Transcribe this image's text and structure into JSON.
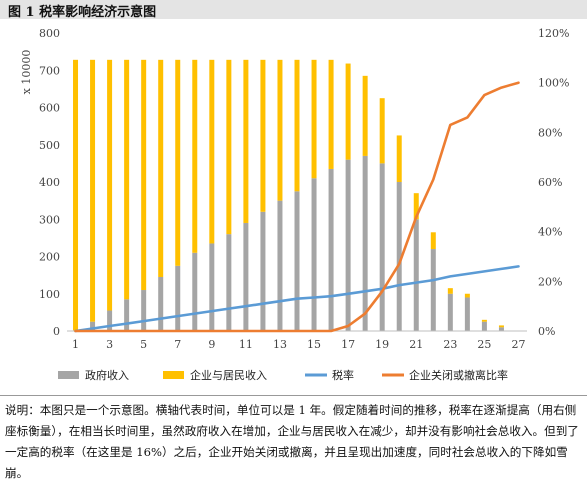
{
  "figure": {
    "title": "图 1  税率影响经济示意图"
  },
  "caption": "说明：本图只是一个示意图。横轴代表时间，单位可以是 1 年。假定随着时间的推移，税率在逐渐提高（用右侧座标衡量），在相当长时间里，虽然政府收入在增加，企业与居民收入在减少，却并没有影响社会总收入。但到了一定高的税率（在这里是 16%）之后，企业开始关闭或撤离，并且呈现出加速度，同时社会总收入的下降如雪崩。",
  "chart_data": {
    "type": "bar",
    "ylabel_left": "x 10000",
    "ylim_left": [
      0,
      800
    ],
    "yticks_left": [
      "0",
      "100",
      "200",
      "300",
      "400",
      "500",
      "600",
      "700",
      "800"
    ],
    "ylim_right": [
      0,
      120
    ],
    "yticks_right": [
      "0%",
      "20%",
      "40%",
      "60%",
      "80%",
      "100%",
      "120%"
    ],
    "x": [
      1,
      2,
      3,
      4,
      5,
      6,
      7,
      8,
      9,
      10,
      11,
      12,
      13,
      14,
      15,
      16,
      17,
      18,
      19,
      20,
      21,
      22,
      23,
      24,
      25,
      26,
      27
    ],
    "xtick_labels": [
      "1",
      "",
      "3",
      "",
      "5",
      "",
      "7",
      "",
      "9",
      "",
      "11",
      "",
      "13",
      "",
      "15",
      "",
      "17",
      "",
      "19",
      "",
      "21",
      "",
      "23",
      "",
      "25",
      "",
      "27"
    ],
    "stacked_series": [
      {
        "name": "政府收入",
        "color": "#a5a5a5",
        "values": [
          2,
          25,
          55,
          85,
          110,
          145,
          175,
          210,
          235,
          260,
          290,
          320,
          350,
          375,
          410,
          435,
          460,
          470,
          450,
          400,
          300,
          220,
          100,
          90,
          25,
          10,
          0
        ]
      },
      {
        "name": "企业与居民收入",
        "color": "#ffc000",
        "values": [
          726,
          703,
          673,
          643,
          618,
          583,
          553,
          518,
          493,
          468,
          438,
          408,
          378,
          353,
          318,
          293,
          258,
          215,
          175,
          125,
          70,
          45,
          15,
          10,
          5,
          5,
          0
        ]
      }
    ],
    "line_series": [
      {
        "name": "税率",
        "axis": "right",
        "color": "#5b9bd5",
        "values": [
          0,
          1,
          2,
          3,
          4,
          5,
          6,
          7,
          8,
          9,
          10,
          11,
          12,
          13,
          13.5,
          14,
          15,
          16,
          17,
          18.5,
          19.5,
          20.5,
          22,
          23,
          24,
          25,
          26
        ]
      },
      {
        "name": "企业关闭或撤离比率",
        "axis": "right",
        "color": "#ed7d31",
        "values": [
          0,
          0,
          0,
          0,
          0,
          0,
          0,
          0,
          0,
          0,
          0,
          0,
          0,
          0,
          0,
          0,
          2,
          7,
          16,
          27,
          46,
          61,
          83,
          86,
          95,
          98,
          100
        ]
      }
    ],
    "legend": [
      "政府收入",
      "企业与居民收入",
      "税率",
      "企业关闭或撤离比率"
    ],
    "legend_position": "bottom",
    "grid": false
  }
}
